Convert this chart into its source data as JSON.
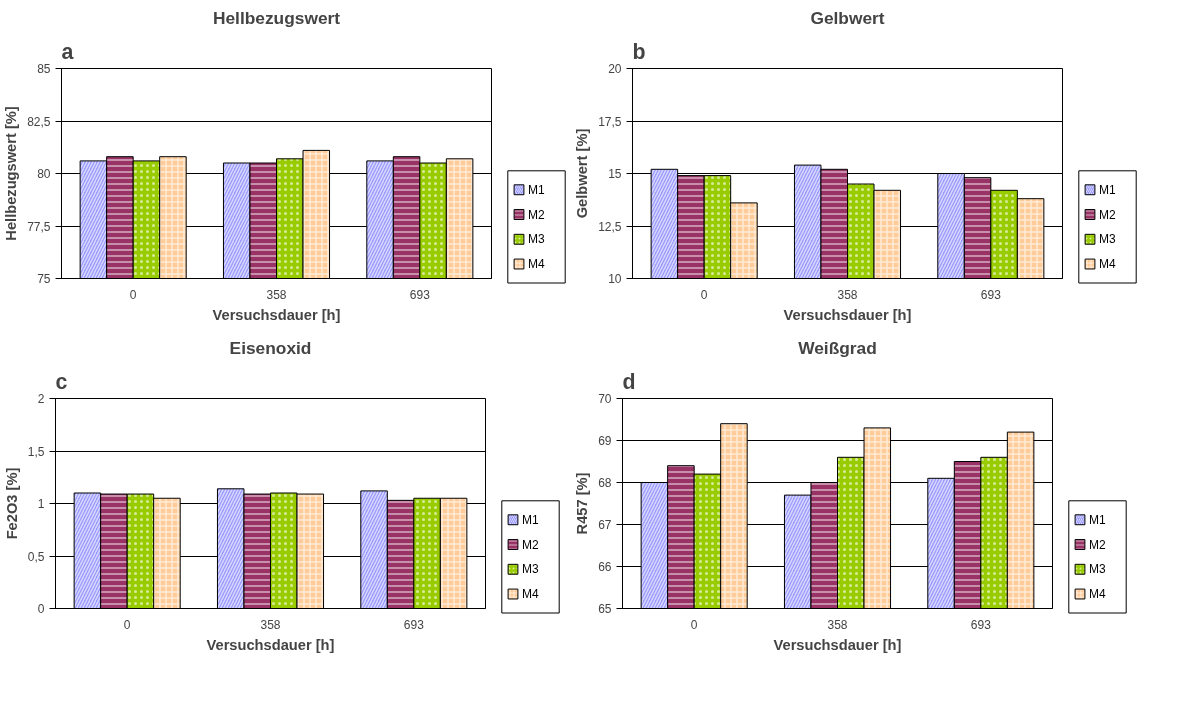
{
  "chart_data": [
    {
      "type": "bar",
      "annotations": [
        "a"
      ],
      "title": "Hellbezugswert",
      "xlabel": "Versuchsdauer [h]",
      "ylabel": "Hellbezugswert [%]",
      "categories": [
        "0",
        "358",
        "693"
      ],
      "series": [
        {
          "name": "M1",
          "color": "#9999ff",
          "values": [
            80.6,
            80.5,
            80.6
          ]
        },
        {
          "name": "M2",
          "color": "#993366",
          "values": [
            80.8,
            80.5,
            80.8
          ]
        },
        {
          "name": "M3",
          "color": "#99cc00",
          "values": [
            80.6,
            80.7,
            80.5
          ]
        },
        {
          "name": "M4",
          "color": "#ffcc99",
          "values": [
            80.8,
            81.1,
            80.7
          ]
        }
      ],
      "ylim": [
        75,
        85
      ],
      "yticks": [
        75,
        {
          "value": 77.5,
          "label": "77,5"
        },
        80,
        {
          "value": 82.5,
          "label": "82,5"
        },
        85
      ],
      "grid": "y",
      "legend": "right"
    },
    {
      "type": "bar",
      "annotations": [
        "b"
      ],
      "title": "Gelbwert",
      "xlabel": "Versuchsdauer [h]",
      "ylabel": "Gelbwert [%]",
      "categories": [
        "0",
        "358",
        "693"
      ],
      "series": [
        {
          "name": "M1",
          "color": "#9999ff",
          "values": [
            15.2,
            15.4,
            15.0
          ]
        },
        {
          "name": "M2",
          "color": "#993366",
          "values": [
            14.9,
            15.2,
            14.8
          ]
        },
        {
          "name": "M3",
          "color": "#99cc00",
          "values": [
            14.9,
            14.5,
            14.2
          ]
        },
        {
          "name": "M4",
          "color": "#ffcc99",
          "values": [
            13.6,
            14.2,
            13.8
          ]
        }
      ],
      "ylim": [
        10,
        20
      ],
      "yticks": [
        10,
        {
          "value": 12.5,
          "label": "12,5"
        },
        15,
        {
          "value": 17.5,
          "label": "17,5"
        },
        20
      ],
      "grid": "y",
      "legend": "right"
    },
    {
      "type": "bar",
      "annotations": [
        "c"
      ],
      "title": "Eisenoxid",
      "xlabel": "Versuchsdauer [h]",
      "ylabel": "Fe2O3 [%]",
      "categories": [
        "0",
        "358",
        "693"
      ],
      "series": [
        {
          "name": "M1",
          "color": "#9999ff",
          "values": [
            1.1,
            1.14,
            1.12
          ]
        },
        {
          "name": "M2",
          "color": "#993366",
          "values": [
            1.09,
            1.09,
            1.03
          ]
        },
        {
          "name": "M3",
          "color": "#99cc00",
          "values": [
            1.09,
            1.1,
            1.05
          ]
        },
        {
          "name": "M4",
          "color": "#ffcc99",
          "values": [
            1.05,
            1.09,
            1.05
          ]
        }
      ],
      "ylim": [
        0,
        2
      ],
      "yticks": [
        0,
        {
          "value": 0.5,
          "label": "0,5"
        },
        1,
        {
          "value": 1.5,
          "label": "1,5"
        },
        2
      ],
      "grid": "y",
      "legend": "right"
    },
    {
      "type": "bar",
      "annotations": [
        "d"
      ],
      "title": "Weißgrad",
      "xlabel": "Versuchsdauer [h]",
      "ylabel": "R457 [%]",
      "categories": [
        "0",
        "358",
        "693"
      ],
      "series": [
        {
          "name": "M1",
          "color": "#9999ff",
          "values": [
            68.0,
            67.7,
            68.1
          ]
        },
        {
          "name": "M2",
          "color": "#993366",
          "values": [
            68.4,
            68.0,
            68.5
          ]
        },
        {
          "name": "M3",
          "color": "#99cc00",
          "values": [
            68.2,
            68.6,
            68.6
          ]
        },
        {
          "name": "M4",
          "color": "#ffcc99",
          "values": [
            69.4,
            69.3,
            69.2
          ]
        }
      ],
      "ylim": [
        65,
        70
      ],
      "yticks": [
        65,
        66,
        67,
        68,
        69,
        70
      ],
      "grid": "y",
      "legend": "right"
    }
  ]
}
